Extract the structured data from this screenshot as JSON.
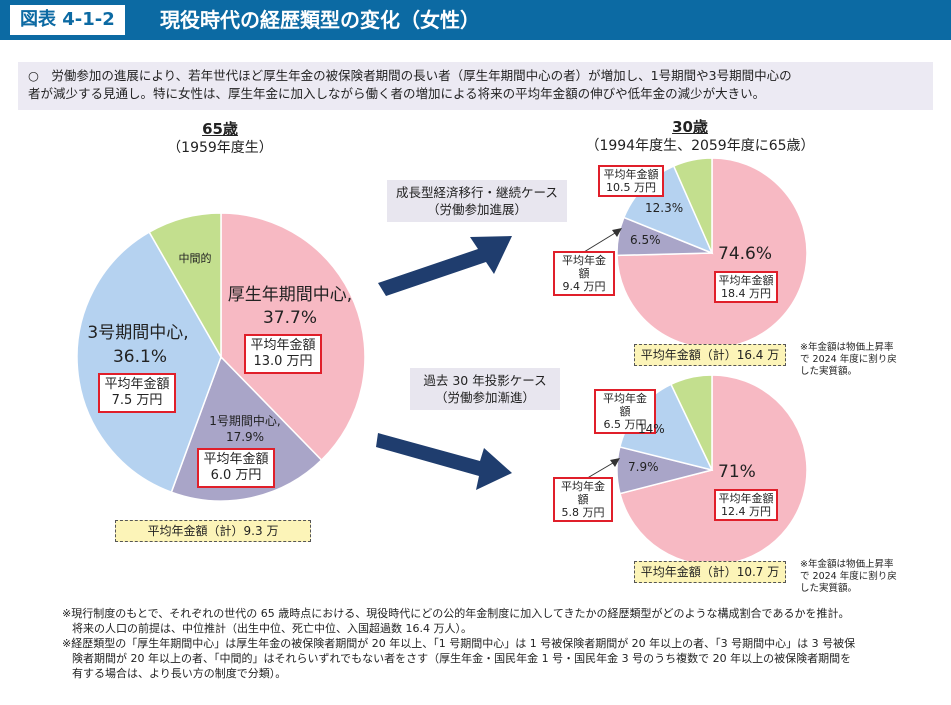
{
  "header": {
    "figure_number": "図表 4-1-2",
    "title": "現役時代の経歴類型の変化（女性）"
  },
  "summary": {
    "line1": "○　労働参加の進展により、若年世代ほど厚生年金の被保険者期間の長い者（厚生年期間中心の者）が増加し、1号期間や3号期間中心の",
    "line2": "者が減少する見通し。特に女性は、厚生年金に加入しながら働く者の増加による将来の平均年金額の伸びや低年金の減少が大きい。"
  },
  "left_panel": {
    "heading": "65歳",
    "subheading": "（1959年度生）",
    "total": "平均年金額（計）9.3 万"
  },
  "right_panel": {
    "heading": "30歳",
    "subheading": "（1994年度生、2059年度に65歳）"
  },
  "cases": {
    "case1_line1": "成長型経済移行・継続ケース",
    "case1_line2": "（労働参加進展）",
    "case2_line1": "過去 30 年投影ケース",
    "case2_line2": "（労働参加漸進）"
  },
  "top_right_total": "平均年金額（計）16.4 万",
  "bottom_right_total": "平均年金額（計）10.7 万",
  "price_note": {
    "line1": "※年金額は物価上昇率",
    "line2": "で 2024 年度に割り戻",
    "line3": "した実質額。"
  },
  "footnotes": {
    "f1_line1": "※現行制度のもとで、それぞれの世代の 65 歳時点における、現役時代にどの公的年金制度に加入してきたかの経歴類型がどのような構成割合であるかを推計。",
    "f1_line2": "将来の人口の前提は、中位推計（出生中位、死亡中位、入国超過数 16.4 万人）。",
    "f2_line1": "※経歴類型の「厚生年期間中心」は厚生年金の被保険者期間が 20 年以上、「1 号期間中心」は 1 号被保険者期間が 20 年以上の者、「3 号期間中心」は 3 号被保",
    "f2_line2": "険者期間が 20 年以上の者、「中間的」はそれらいずれでもない者をさす（厚生年金・国民年金 1 号・国民年金 3 号のうち複数で 20 年以上の被保険者期間を",
    "f2_line3": "有する場合は、より長い方の制度で分類）。"
  },
  "colors": {
    "kosei": "#f7b9c3",
    "ichigo": "#a9a5c8",
    "sango": "#b5d2f0",
    "chukan": "#c3df8e",
    "header_blue": "#0c6aa3",
    "arrow_navy": "#1f3d6e",
    "red_border": "#e01f2a"
  },
  "chart_data": [
    {
      "type": "pie",
      "title": "65歳",
      "subtitle": "（1959年度生）",
      "slices": [
        {
          "label": "厚生年期間中心",
          "value": 37.7,
          "pension_label": "平均年金額",
          "pension_value": "13.0 万円"
        },
        {
          "label": "1号期間中心",
          "value": 17.9,
          "pension_label": "平均年金額",
          "pension_value": "6.0 万円"
        },
        {
          "label": "3号期間中心",
          "value": 36.1,
          "pension_label": "平均年金額",
          "pension_value": "7.5 万円"
        },
        {
          "label": "中間的",
          "value": 8.3
        }
      ],
      "total": "平均年金額（計）9.3 万"
    },
    {
      "type": "pie",
      "title": "30歳",
      "case": "成長型経済移行・継続ケース",
      "slices": [
        {
          "label": "厚生年期間中心",
          "value": 74.6,
          "pension_label": "平均年金額",
          "pension_value": "18.4 万円"
        },
        {
          "label": "1号期間中心",
          "value": 6.5,
          "pension_label": "平均年金額",
          "pension_value": "9.4 万円"
        },
        {
          "label": "3号期間中心",
          "value": 12.3,
          "pension_label": "平均年金額",
          "pension_value": "10.5 万円"
        },
        {
          "label": "中間的",
          "value": 6.6
        }
      ],
      "total": "平均年金額（計）16.4 万"
    },
    {
      "type": "pie",
      "title": "30歳",
      "case": "過去 30 年投影ケース",
      "slices": [
        {
          "label": "厚生年期間中心",
          "value": 71.0,
          "pension_label": "平均年金額",
          "pension_value": "12.4 万円"
        },
        {
          "label": "1号期間中心",
          "value": 7.9,
          "pension_label": "平均年金額",
          "pension_value": "5.8 万円"
        },
        {
          "label": "3号期間中心",
          "value": 14.0,
          "pension_label": "平均年金額",
          "pension_value": "6.5 万円"
        },
        {
          "label": "中間的",
          "value": 7.1
        }
      ],
      "total": "平均年金額（計）10.7 万"
    }
  ]
}
